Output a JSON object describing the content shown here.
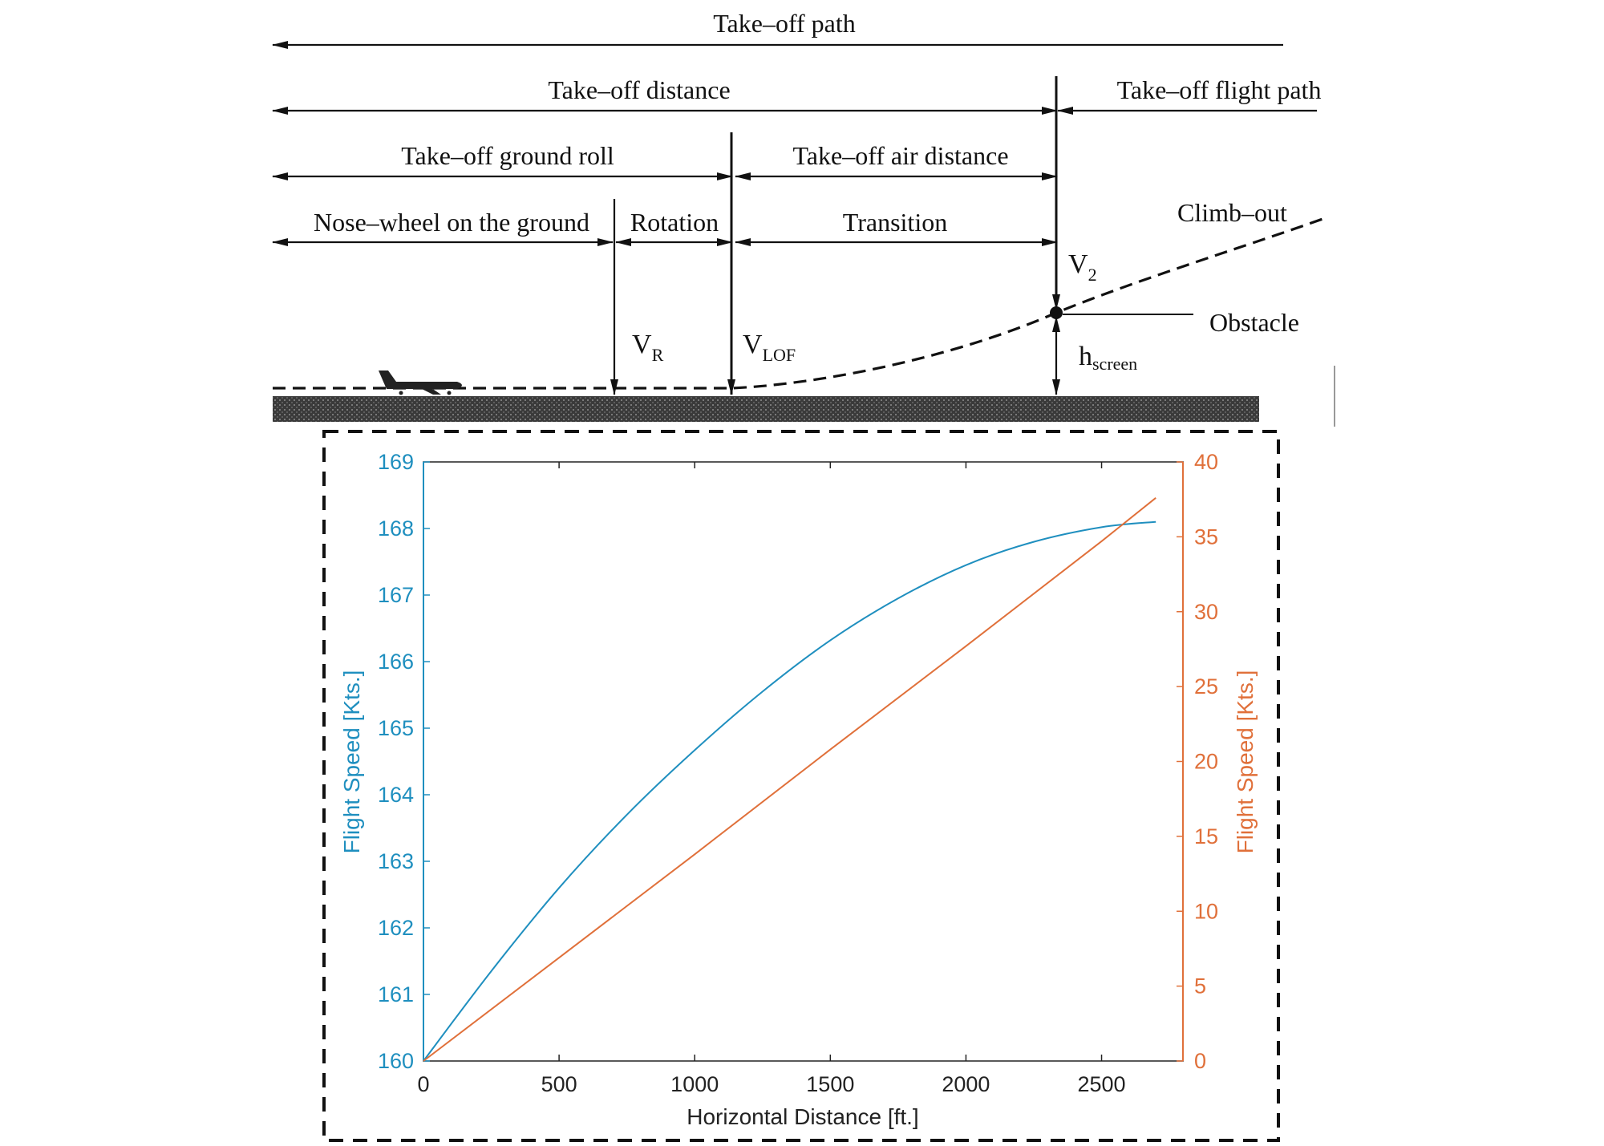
{
  "diagram": {
    "takeoff_path": "Take–off path",
    "takeoff_distance": "Take–off distance",
    "takeoff_flight_path": "Take–off flight path",
    "ground_roll": "Take–off ground roll",
    "air_distance": "Take–off air distance",
    "nose_wheel": "Nose–wheel on the ground",
    "rotation": "Rotation",
    "transition": "Transition",
    "climb_out": "Climb–out",
    "obstacle": "Obstacle",
    "vr": {
      "main": "V",
      "sub": "R"
    },
    "vlof": {
      "main": "V",
      "sub": "LOF"
    },
    "v2": {
      "main": "V",
      "sub": "2"
    },
    "hscreen": {
      "main": "h",
      "sub": "screen"
    }
  },
  "colors": {
    "left_series": "#1f8fbf",
    "right_series": "#e0703a",
    "ink": "#111111"
  },
  "chart_data": {
    "type": "line",
    "title": "",
    "xlabel": "Horizontal Distance [ft.]",
    "ylabel_left": "Flight Speed [Kts.]",
    "ylabel_right": "Flight Speed [Kts.]",
    "xlim": [
      0,
      2800
    ],
    "ylim_left": [
      160,
      169
    ],
    "ylim_right": [
      0,
      40
    ],
    "x_ticks": [
      0,
      500,
      1000,
      1500,
      2000,
      2500
    ],
    "y_ticks_left": [
      160,
      161,
      162,
      163,
      164,
      165,
      166,
      167,
      168,
      169
    ],
    "y_ticks_right": [
      0,
      5,
      10,
      15,
      20,
      25,
      30,
      35,
      40
    ],
    "grid": false,
    "series": [
      {
        "axis": "left",
        "color": "#1f8fbf",
        "x": [
          0,
          250,
          500,
          750,
          1000,
          1250,
          1500,
          1750,
          2000,
          2250,
          2500,
          2700
        ],
        "y": [
          160.0,
          161.35,
          162.6,
          163.7,
          164.67,
          165.55,
          166.32,
          166.95,
          167.45,
          167.8,
          168.02,
          168.1
        ]
      },
      {
        "axis": "right",
        "color": "#e0703a",
        "x": [
          0,
          500,
          1000,
          1500,
          2000,
          2500,
          2700
        ],
        "y": [
          0,
          6.9,
          13.8,
          20.8,
          27.7,
          34.7,
          37.6
        ]
      }
    ]
  }
}
